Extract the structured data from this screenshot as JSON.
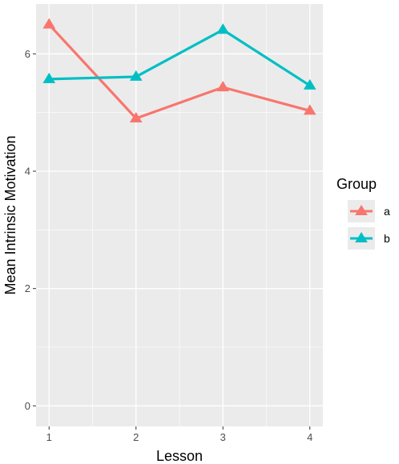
{
  "chart_data": {
    "type": "line",
    "title": "",
    "xlabel": "Lesson",
    "ylabel": "Mean Intrinsic Motivation",
    "x": [
      1,
      2,
      3,
      4
    ],
    "x_ticks": [
      "1",
      "2",
      "3",
      "4"
    ],
    "y_ticks": [
      "0",
      "2",
      "4",
      "6"
    ],
    "xlim": [
      0.85,
      4.15
    ],
    "ylim": [
      -0.35,
      6.85
    ],
    "grid": true,
    "marker": "triangle",
    "legend": {
      "title": "Group",
      "position": "right"
    },
    "series": [
      {
        "name": "a",
        "color": "#F8766D",
        "values": [
          6.5,
          4.9,
          5.43,
          5.03
        ]
      },
      {
        "name": "b",
        "color": "#00BFC4",
        "values": [
          5.57,
          5.61,
          6.41,
          5.46
        ]
      }
    ]
  }
}
